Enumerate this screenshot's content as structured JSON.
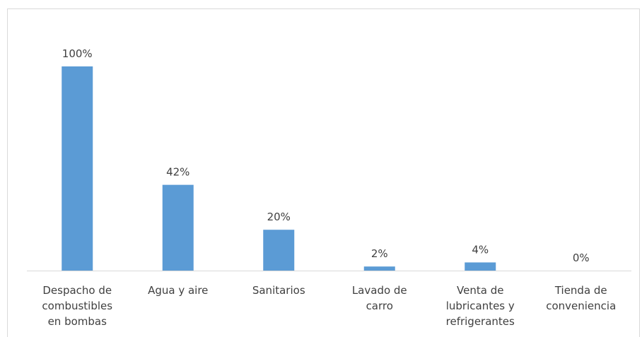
{
  "chart_data": {
    "type": "bar",
    "categories": [
      "Despacho de combustibles en bombas",
      "Agua y aire",
      "Sanitarios",
      "Lavado de carro",
      "Venta de lubricantes y refrigerantes",
      "Tienda de conveniencia"
    ],
    "values": [
      100,
      42,
      20,
      2,
      4,
      0
    ],
    "value_labels": [
      "100%",
      "42%",
      "20%",
      "2%",
      "4%",
      "0%"
    ],
    "color": "#5b9bd5"
  }
}
